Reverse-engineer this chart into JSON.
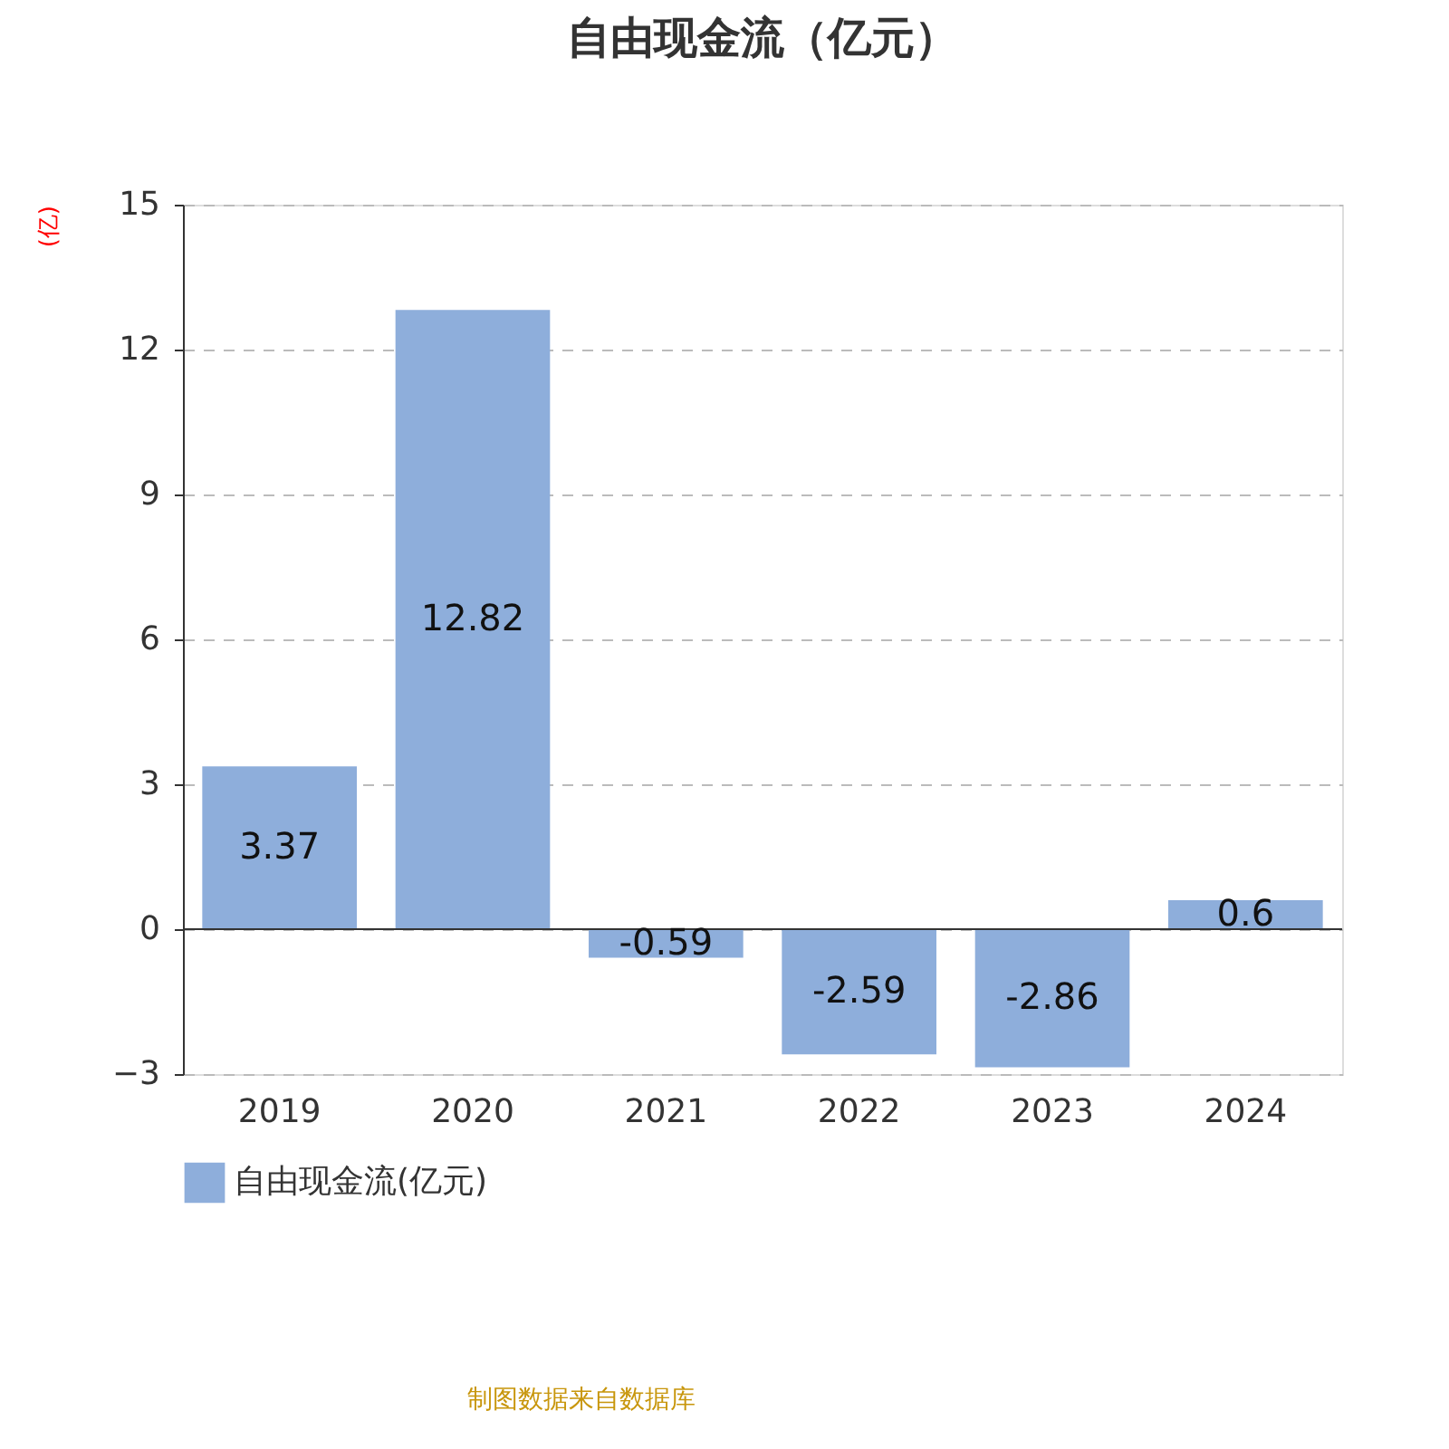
{
  "chart_data": {
    "type": "bar",
    "title": "自由现金流（亿元）",
    "ylabel": "(亿)",
    "categories": [
      "2019",
      "2020",
      "2021",
      "2022",
      "2023",
      "2024"
    ],
    "series": [
      {
        "name": "自由现金流(亿元)",
        "color": "#8eaedb",
        "values": [
          3.37,
          12.82,
          -0.59,
          -2.59,
          -2.86,
          0.6
        ]
      }
    ],
    "ylim": [
      -3,
      15
    ],
    "yticks": [
      -3,
      0,
      3,
      6,
      9,
      12,
      15
    ],
    "grid": "y",
    "legend": "bottom",
    "data_labels": true,
    "annotations": [
      "制图数据来自数据库"
    ]
  }
}
